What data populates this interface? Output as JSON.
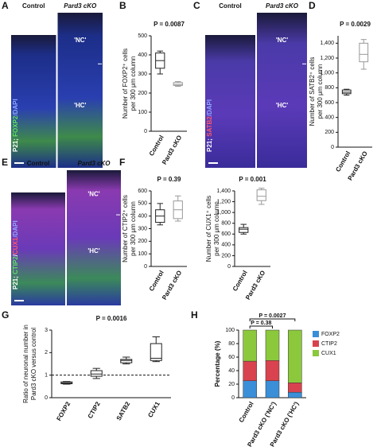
{
  "panel_letters": [
    "A",
    "B",
    "C",
    "D",
    "E",
    "F",
    "G",
    "H"
  ],
  "images": [
    {
      "col_labels": [
        "Control",
        "Pard3 cKO"
      ],
      "region_labels": [
        "'NC'",
        "'HC'"
      ],
      "stain": [
        {
          "text": "P21; ",
          "color": "#ffffff"
        },
        {
          "text": "FOXP2",
          "color": "#5fe35f"
        },
        {
          "text": "/DAPI",
          "color": "#8fa8ff"
        }
      ]
    },
    {
      "col_labels": [
        "Control",
        "Pard3 cKO"
      ],
      "region_labels": [
        "'NC'",
        "'HC'"
      ],
      "stain": [
        {
          "text": "P21; ",
          "color": "#ffffff"
        },
        {
          "text": "SATB2",
          "color": "#ff5a6a"
        },
        {
          "text": "/DAPI",
          "color": "#8fa8ff"
        }
      ]
    },
    {
      "col_labels": [
        "Control",
        "Pard3 cKO"
      ],
      "region_labels": [
        "'NC'",
        "'HC'"
      ],
      "stain": [
        {
          "text": "P21; ",
          "color": "#ffffff"
        },
        {
          "text": "CTIP2",
          "color": "#5fe35f"
        },
        {
          "text": "/",
          "color": "#ffffff"
        },
        {
          "text": "CUX1",
          "color": "#ff5a6a"
        },
        {
          "text": "/DAPI",
          "color": "#8fa8ff"
        }
      ]
    }
  ],
  "chart_data": [
    {
      "type": "box",
      "title": "P = 0.0087",
      "ylabel": [
        "Number of FOXP2⁺ cells",
        "per 300 μm column"
      ],
      "categories": [
        "Control",
        "Pard3 cKO"
      ],
      "colors": [
        "#222222",
        "#999999"
      ],
      "boxes": [
        {
          "min": 300,
          "q1": 330,
          "median": 370,
          "q3": 410,
          "max": 420
        },
        {
          "min": 235,
          "q1": 240,
          "median": 245,
          "q3": 255,
          "max": 260
        }
      ],
      "ylim": [
        0,
        500
      ],
      "yticks": [
        0,
        100,
        200,
        300,
        400,
        500
      ]
    },
    {
      "type": "box",
      "title": "P = 0.0029",
      "ylabel": [
        "Number of SATB2⁺ cells",
        "per 300 μm column"
      ],
      "categories": [
        "Control",
        "Pard3 cKO"
      ],
      "colors": [
        "#222222",
        "#999999"
      ],
      "boxes": [
        {
          "min": 700,
          "q1": 720,
          "median": 740,
          "q3": 770,
          "max": 780
        },
        {
          "min": 1050,
          "q1": 1150,
          "median": 1250,
          "q3": 1400,
          "max": 1450
        }
      ],
      "ylim": [
        0,
        1500
      ],
      "yticks": [
        0,
        200,
        400,
        600,
        800,
        {
          "value": 1000,
          "label": "1,000"
        },
        {
          "value": 1200,
          "label": "1,200"
        },
        {
          "value": 1400,
          "label": "1,400"
        }
      ]
    },
    {
      "type": "box",
      "title": "P = 0.39",
      "ylabel": [
        "Number of CTIP2⁺ cells",
        "per 300 μm column"
      ],
      "categories": [
        "Control",
        "Pard3 cKO"
      ],
      "colors": [
        "#222222",
        "#999999"
      ],
      "boxes": [
        {
          "min": 330,
          "q1": 350,
          "median": 400,
          "q3": 450,
          "max": 500
        },
        {
          "min": 360,
          "q1": 380,
          "median": 450,
          "q3": 520,
          "max": 560
        }
      ],
      "ylim": [
        0,
        600
      ],
      "yticks": [
        0,
        100,
        200,
        300,
        400,
        500,
        600
      ]
    },
    {
      "type": "box",
      "title": "P = 0.001",
      "ylabel": [
        "Number of CUX1⁺ cells",
        "per 300 μm column"
      ],
      "categories": [
        "Control",
        "Pard3 cKO"
      ],
      "colors": [
        "#222222",
        "#999999"
      ],
      "boxes": [
        {
          "min": 600,
          "q1": 630,
          "median": 690,
          "q3": 720,
          "max": 780
        },
        {
          "min": 1150,
          "q1": 1220,
          "median": 1300,
          "q3": 1420,
          "max": 1450
        }
      ],
      "ylim": [
        0,
        1400
      ],
      "yticks": [
        0,
        200,
        400,
        600,
        800,
        {
          "value": 1000,
          "label": "1,000"
        },
        {
          "value": 1200,
          "label": "1,200"
        },
        {
          "value": 1400,
          "label": "1,400"
        }
      ]
    },
    {
      "type": "box",
      "title": "P = 0.0016",
      "ylabel": [
        "Ratio of neuronal number in",
        "Pard3 cKO versus control"
      ],
      "categories": [
        "FOXP2",
        "CTIP2",
        "SATB2",
        "CUX1"
      ],
      "colors": [
        "#222222",
        "#222222",
        "#222222",
        "#222222"
      ],
      "boxes": [
        {
          "min": 0.6,
          "q1": 0.62,
          "median": 0.65,
          "q3": 0.7,
          "max": 0.72
        },
        {
          "min": 0.85,
          "q1": 0.95,
          "median": 1.05,
          "q3": 1.2,
          "max": 1.3
        },
        {
          "min": 1.5,
          "q1": 1.55,
          "median": 1.65,
          "q3": 1.7,
          "max": 1.8
        },
        {
          "min": 1.6,
          "q1": 1.65,
          "median": 1.75,
          "q3": 2.4,
          "max": 2.7
        }
      ],
      "reference_line": 1,
      "ylim": [
        0,
        3
      ],
      "yticks": [
        0,
        1,
        2,
        3
      ]
    },
    {
      "type": "stacked_bar",
      "ylabel": "Percentage (%)",
      "categories": [
        "Control",
        "Pard3 cKO ('NC')",
        "Pard3 cKO ('HC')"
      ],
      "series": [
        {
          "name": "FOXP2",
          "color": "#3a8fd8",
          "values": [
            25,
            25,
            8
          ]
        },
        {
          "name": "CTIP2",
          "color": "#d9434f",
          "values": [
            29,
            30,
            14
          ]
        },
        {
          "name": "CUX1",
          "color": "#8cc83c",
          "values": [
            46,
            45,
            78
          ]
        }
      ],
      "annotations": [
        "P = 0.0027",
        "P = 0.38"
      ],
      "ylim": [
        0,
        100
      ],
      "yticks": [
        0,
        20,
        40,
        60,
        80,
        100
      ]
    }
  ]
}
